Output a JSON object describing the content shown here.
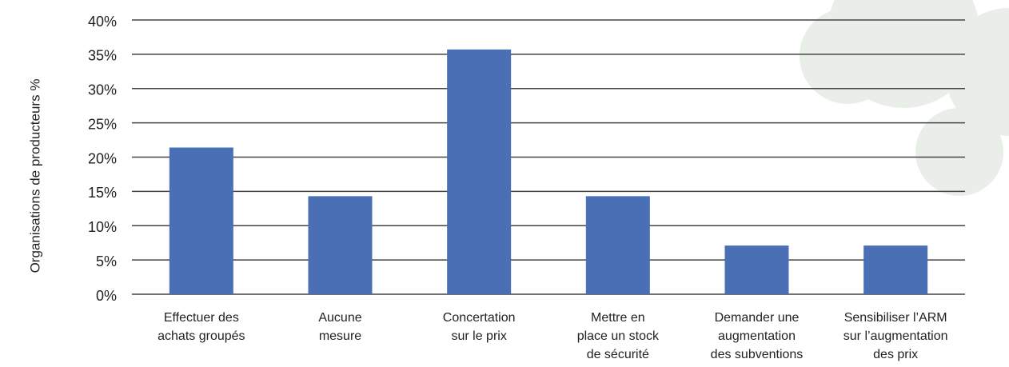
{
  "chart_data": {
    "type": "bar",
    "y_label": "Organisations de producteurs %",
    "categories": [
      [
        "Effectuer des",
        "achats groupés"
      ],
      [
        "Aucune",
        "mesure"
      ],
      [
        "Concertation",
        "sur le prix"
      ],
      [
        "Mettre en",
        "place un stock",
        "de sécurité"
      ],
      [
        "Demander une",
        "augmentation",
        "des subventions"
      ],
      [
        "Sensibiliser l’ARM",
        "sur l’augmentation",
        "des prix"
      ]
    ],
    "values": [
      21.4,
      14.3,
      35.7,
      14.3,
      7.1,
      7.1
    ],
    "color": "#4a6fb5",
    "ylim": [
      0,
      40
    ],
    "yticks": [
      {
        "value": 0,
        "label": "0%"
      },
      {
        "value": 5,
        "label": "5%"
      },
      {
        "value": 10,
        "label": "10%"
      },
      {
        "value": 15,
        "label": "15%"
      },
      {
        "value": 20,
        "label": "20%"
      },
      {
        "value": 25,
        "label": "25%"
      },
      {
        "value": 30,
        "label": "30%"
      },
      {
        "value": 35,
        "label": "35%"
      },
      {
        "value": 40,
        "label": "40%"
      }
    ],
    "grid": true
  }
}
